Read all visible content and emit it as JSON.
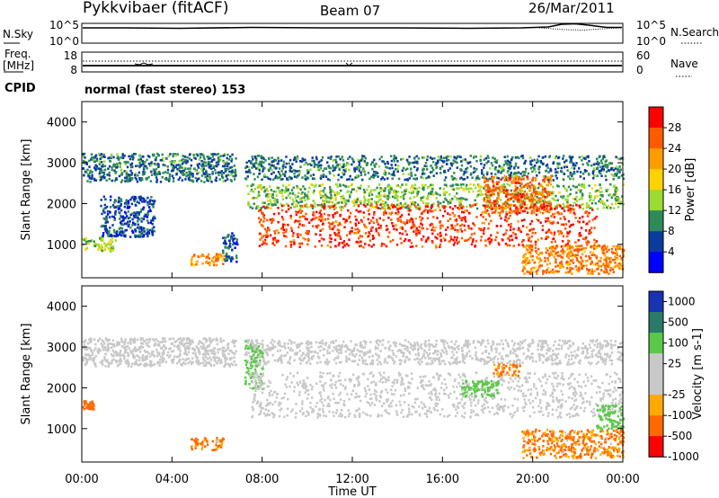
{
  "header": {
    "station": "Pykkvibaer (fitACF)",
    "beam": "Beam 07",
    "date": "26/Mar/2011"
  },
  "status_panels": {
    "nsky_label": "N.Sky",
    "nsky_top_tick": "10^5",
    "nsky_bottom_tick": "10^0",
    "nsearch_label": "N.Search",
    "nsearch_top_tick": "10^5",
    "nsearch_bottom_tick": "10^0",
    "freq_label_line1": "Freq.",
    "freq_label_line2": "[MHz]",
    "freq_top_tick": "18",
    "freq_bottom_tick": "8",
    "nave_label": "Nave",
    "nave_top_tick": "60",
    "nave_bottom_tick": "0",
    "cpid_label": "CPID",
    "cpid_text": "normal (fast stereo) 153"
  },
  "axes": {
    "ylabel": "Slant Range [km]",
    "xlabel": "Time UT",
    "y_ticks": [
      "4000",
      "3000",
      "2000",
      "1000"
    ],
    "x_ticks": [
      "00:00",
      "04:00",
      "08:00",
      "12:00",
      "16:00",
      "20:00",
      "00:00"
    ]
  },
  "power_colorbar": {
    "label": "Power [dB]",
    "ticks": [
      "28",
      "24",
      "20",
      "16",
      "12",
      "8",
      "4"
    ],
    "colors": [
      "#ff0000",
      "#ff5a00",
      "#ff9d00",
      "#ffd200",
      "#9adc32",
      "#2e8b57",
      "#0a3c9e",
      "#0000ff"
    ]
  },
  "velocity_colorbar": {
    "label": "Velocity [m s-1]",
    "ticks": [
      "1000",
      "500",
      "100",
      "25",
      "-25",
      "-100",
      "-500",
      "-1000"
    ],
    "colors": [
      "#1a32b4",
      "#2a7a6a",
      "#5cc84a",
      "#c8c8c8",
      "#c8c8c8",
      "#ffaa00",
      "#ff6a00",
      "#ff0000"
    ]
  },
  "chart_data": [
    {
      "type": "heatmap",
      "title": "Power",
      "xlabel": "Time UT",
      "ylabel": "Slant Range [km]",
      "xlim": [
        "00:00",
        "24:00"
      ],
      "ylim": [
        180,
        4500
      ],
      "value_range": [
        0,
        30
      ],
      "blobs": [
        {
          "t0": 0.0,
          "t1": 6.8,
          "r0": 2550,
          "r1": 3250,
          "value": 8
        },
        {
          "t0": 0.0,
          "t1": 1.5,
          "r0": 850,
          "r1": 1200,
          "value": 14
        },
        {
          "t0": 0.8,
          "t1": 3.2,
          "r0": 1200,
          "r1": 2200,
          "value": 6
        },
        {
          "t0": 4.8,
          "t1": 6.3,
          "r0": 500,
          "r1": 800,
          "value": 22
        },
        {
          "t0": 6.2,
          "t1": 6.9,
          "r0": 600,
          "r1": 1300,
          "value": 6
        },
        {
          "t0": 7.2,
          "t1": 24.0,
          "r0": 2600,
          "r1": 3200,
          "value": 8
        },
        {
          "t0": 7.3,
          "t1": 24.0,
          "r0": 1900,
          "r1": 2500,
          "value": 12
        },
        {
          "t0": 7.8,
          "t1": 22.8,
          "r0": 950,
          "r1": 2000,
          "value": 26
        },
        {
          "t0": 17.8,
          "t1": 20.8,
          "r0": 1800,
          "r1": 2700,
          "value": 24
        },
        {
          "t0": 19.5,
          "t1": 24.0,
          "r0": 300,
          "r1": 1000,
          "value": 22
        }
      ]
    },
    {
      "type": "heatmap",
      "title": "Velocity",
      "xlabel": "Time UT",
      "ylabel": "Slant Range [km]",
      "xlim": [
        "00:00",
        "24:00"
      ],
      "ylim": [
        180,
        4500
      ],
      "value_range": [
        -1000,
        1000
      ],
      "blobs": [
        {
          "t0": 0.0,
          "t1": 6.8,
          "r0": 2550,
          "r1": 3250,
          "value": 0
        },
        {
          "t0": 0.0,
          "t1": 0.5,
          "r0": 1500,
          "r1": 1700,
          "value": -300
        },
        {
          "t0": 4.8,
          "t1": 6.3,
          "r0": 500,
          "r1": 800,
          "value": -120
        },
        {
          "t0": 7.2,
          "t1": 24.0,
          "r0": 2600,
          "r1": 3200,
          "value": 0
        },
        {
          "t0": 7.2,
          "t1": 8.0,
          "r0": 2000,
          "r1": 3200,
          "value": 120
        },
        {
          "t0": 7.5,
          "t1": 24.0,
          "r0": 1300,
          "r1": 2400,
          "value": 0
        },
        {
          "t0": 16.8,
          "t1": 18.5,
          "r0": 1800,
          "r1": 2200,
          "value": 300
        },
        {
          "t0": 18.2,
          "t1": 19.4,
          "r0": 2300,
          "r1": 2600,
          "value": -150
        },
        {
          "t0": 19.5,
          "t1": 24.0,
          "r0": 300,
          "r1": 1000,
          "value": -120
        },
        {
          "t0": 22.8,
          "t1": 24.0,
          "r0": 1000,
          "r1": 1600,
          "value": 200
        }
      ]
    }
  ]
}
